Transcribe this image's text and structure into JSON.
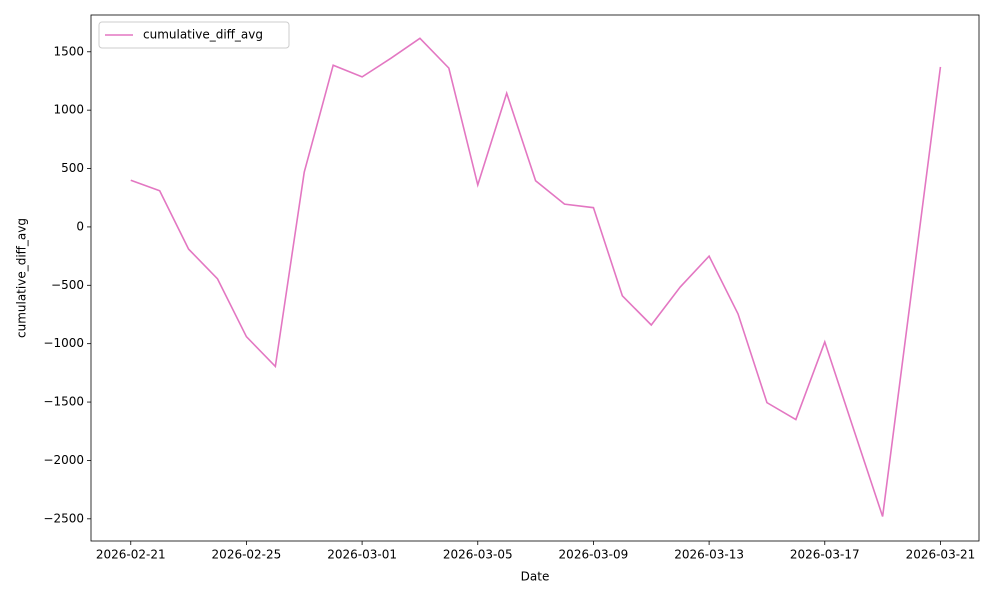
{
  "chart_data": {
    "type": "line",
    "xlabel": "Date",
    "ylabel": "cumulative_diff_avg",
    "x": [
      "2026-02-21",
      "2026-02-22",
      "2026-02-23",
      "2026-02-24",
      "2026-02-25",
      "2026-02-26",
      "2026-02-27",
      "2026-02-28",
      "2026-03-01",
      "2026-03-02",
      "2026-03-03",
      "2026-03-04",
      "2026-03-05",
      "2026-03-06",
      "2026-03-07",
      "2026-03-08",
      "2026-03-09",
      "2026-03-10",
      "2026-03-11",
      "2026-03-12",
      "2026-03-13",
      "2026-03-14",
      "2026-03-15",
      "2026-03-16",
      "2026-03-17",
      "2026-03-18",
      "2026-03-19",
      "2026-03-20",
      "2026-03-21"
    ],
    "series": [
      {
        "name": "cumulative_diff_avg",
        "color": "#e377c2",
        "values": [
          400,
          310,
          -190,
          -445,
          -940,
          -1195,
          470,
          1385,
          1285,
          1445,
          1615,
          1360,
          360,
          1145,
          395,
          195,
          165,
          -590,
          -840,
          -515,
          -250,
          -745,
          -1505,
          -1650,
          -985,
          -1735,
          -2480,
          -555,
          1370
        ]
      }
    ],
    "xlim": [
      "2026-02-19T15:00",
      "2026-03-22T08:00"
    ],
    "xticks": [
      "2026-02-21",
      "2026-02-25",
      "2026-03-01",
      "2026-03-05",
      "2026-03-09",
      "2026-03-13",
      "2026-03-17",
      "2026-03-21"
    ],
    "ylim": [
      -2690,
      1815
    ],
    "yticks": [
      {
        "value": -2500,
        "label": "−2500"
      },
      {
        "value": -2000,
        "label": "−2000"
      },
      {
        "value": -1500,
        "label": "−1500"
      },
      {
        "value": -1000,
        "label": "−1000"
      },
      {
        "value": -500,
        "label": "−500"
      },
      0,
      500,
      1000,
      1500
    ],
    "legend": "upper left"
  }
}
